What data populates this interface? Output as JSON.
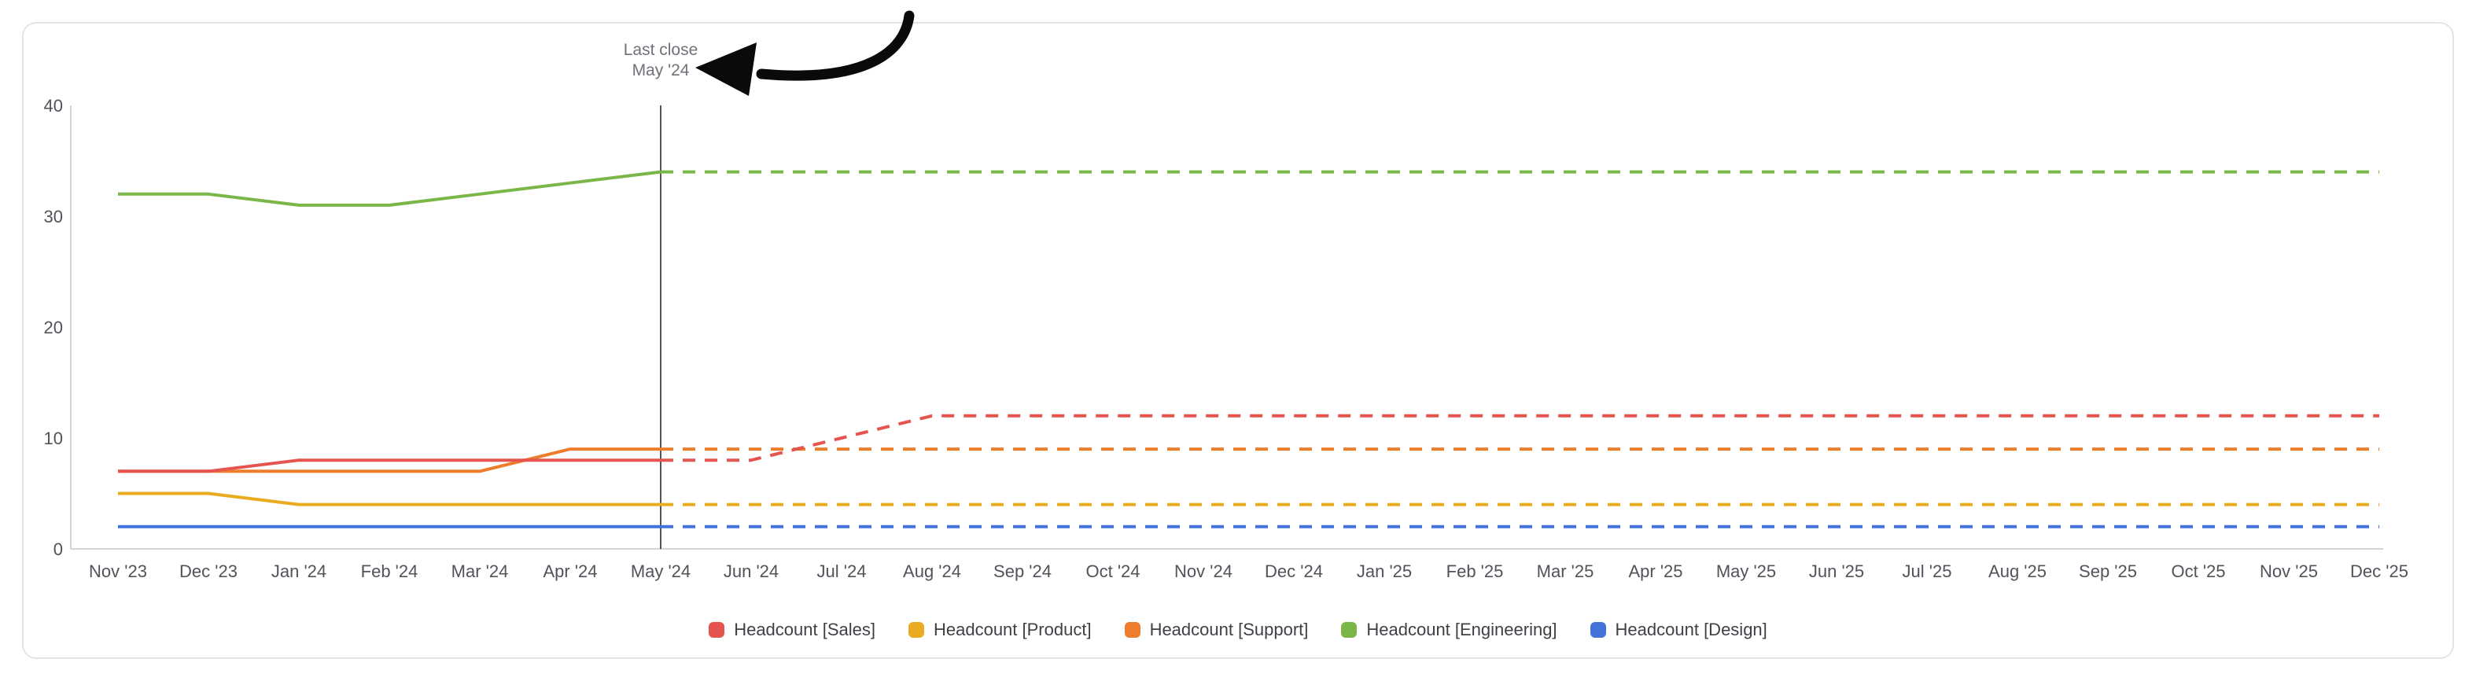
{
  "card": {
    "background": "#ffffff",
    "border_color": "#e4e4e7"
  },
  "chart_data": {
    "type": "line",
    "title": "",
    "xlabel": "",
    "ylabel": "",
    "x_categories": [
      "Nov '23",
      "Dec '23",
      "Jan '24",
      "Feb '24",
      "Mar '24",
      "Apr '24",
      "May '24",
      "Jun '24",
      "Jul '24",
      "Aug '24",
      "Sep '24",
      "Oct '24",
      "Nov '24",
      "Dec '24",
      "Jan '25",
      "Feb '25",
      "Mar '25",
      "Apr '25",
      "May '25",
      "Jun '25",
      "Jul '25",
      "Aug '25",
      "Sep '25",
      "Oct '25",
      "Nov '25",
      "Dec '25"
    ],
    "ylim": [
      0,
      40
    ],
    "yticks": [
      0,
      10,
      20,
      30,
      40
    ],
    "grid": false,
    "legend_position": "bottom",
    "forecast_start_index": 6,
    "annotation": {
      "line1": "Last close",
      "line2": "May '24",
      "x": "May '24",
      "text_color": "#71717a",
      "line_color": "#52525b",
      "arrow_color": "#0a0a0a"
    },
    "line_style": {
      "actuals": "solid",
      "forecast": "dashed"
    },
    "axis_color": "#d4d4d8",
    "tick_label_color": "#52525b",
    "series": [
      {
        "name": "Headcount [Sales]",
        "color": "#e5544e",
        "values": [
          7,
          7,
          8,
          8,
          8,
          8,
          8,
          8,
          10,
          12,
          12,
          12,
          12,
          12,
          12,
          12,
          12,
          12,
          12,
          12,
          12,
          12,
          12,
          12,
          12,
          12
        ]
      },
      {
        "name": "Headcount [Product]",
        "color": "#eaab20",
        "values": [
          5,
          5,
          4,
          4,
          4,
          4,
          4,
          4,
          4,
          4,
          4,
          4,
          4,
          4,
          4,
          4,
          4,
          4,
          4,
          4,
          4,
          4,
          4,
          4,
          4,
          4
        ]
      },
      {
        "name": "Headcount [Support]",
        "color": "#ed7d2b",
        "values": [
          7,
          7,
          7,
          7,
          7,
          9,
          9,
          9,
          9,
          9,
          9,
          9,
          9,
          9,
          9,
          9,
          9,
          9,
          9,
          9,
          9,
          9,
          9,
          9,
          9,
          9
        ]
      },
      {
        "name": "Headcount [Engineering]",
        "color": "#7ab648",
        "values": [
          32,
          32,
          31,
          31,
          32,
          33,
          34,
          34,
          34,
          34,
          34,
          34,
          34,
          34,
          34,
          34,
          34,
          34,
          34,
          34,
          34,
          34,
          34,
          34,
          34,
          34
        ]
      },
      {
        "name": "Headcount [Design]",
        "color": "#4472db",
        "values": [
          2,
          2,
          2,
          2,
          2,
          2,
          2,
          2,
          2,
          2,
          2,
          2,
          2,
          2,
          2,
          2,
          2,
          2,
          2,
          2,
          2,
          2,
          2,
          2,
          2,
          2
        ]
      }
    ]
  }
}
